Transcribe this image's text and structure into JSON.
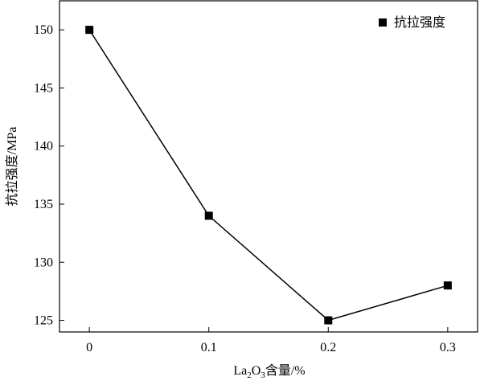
{
  "chart_data": {
    "type": "line",
    "title": "",
    "xlabel": "La2O3含量/%",
    "xlabel_parts": {
      "base": "La",
      "sub1": "2",
      "mid": "O",
      "sub2": "3",
      "rest": "含量/%"
    },
    "ylabel": "抗拉强度/MPa",
    "x": [
      0,
      0.1,
      0.2,
      0.3
    ],
    "x_ticks": [
      "0",
      "0.1",
      "0.2",
      "0.3"
    ],
    "y_ticks": [
      "125",
      "130",
      "135",
      "140",
      "145",
      "150"
    ],
    "xlim": [
      -0.025,
      0.325
    ],
    "ylim": [
      124,
      152.5
    ],
    "series": [
      {
        "name": "抗拉强度",
        "marker": "square",
        "color": "#000000",
        "values": [
          150,
          134,
          125,
          128
        ]
      }
    ],
    "legend_position": "top-right",
    "grid": false
  }
}
